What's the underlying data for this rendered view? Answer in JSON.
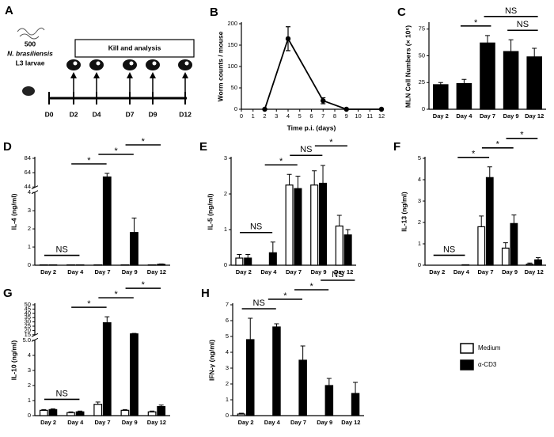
{
  "diagram": {
    "label": "A",
    "count": "500",
    "species": "N. brasiliensis",
    "stage": "L3 larvae",
    "box": "Kill and analysis",
    "days": [
      "D0",
      "D2",
      "D4",
      "D7",
      "D9",
      "D12"
    ]
  },
  "chart_data": [
    {
      "type": "line",
      "label": "B",
      "ylabel": "Worm counts / mouse",
      "xlabel": "Time p.i. (days)",
      "x": [
        2,
        4,
        7,
        9,
        12
      ],
      "series": [
        {
          "color": "#000000",
          "values": [
            0,
            165,
            20,
            0,
            0
          ],
          "errors": [
            0,
            28,
            7,
            0,
            0
          ]
        }
      ],
      "xlim": [
        0,
        12
      ],
      "ylim": [
        0,
        200
      ],
      "xticks": [
        0,
        1,
        2,
        3,
        4,
        5,
        6,
        7,
        8,
        9,
        10,
        11,
        12
      ],
      "yticks": [
        0,
        50,
        100,
        150,
        200
      ]
    },
    {
      "type": "bar",
      "label": "C",
      "ylabel": "MLN Cell Numbers (× 10⁶)",
      "categories": [
        "Day 2",
        "Day 4",
        "Day 7",
        "Day 9",
        "Day 12"
      ],
      "series": [
        {
          "color": "#000000",
          "values": [
            23,
            24,
            62,
            54,
            49
          ],
          "errors": [
            2,
            4,
            7,
            11,
            8
          ]
        }
      ],
      "ylim": [
        0,
        80
      ],
      "yticks": [
        0,
        25,
        50,
        75
      ],
      "annotations": [
        {
          "text": "*",
          "between": [
            "Day 4",
            "Day 7"
          ]
        },
        {
          "text": "NS",
          "between": [
            "Day 9",
            "Day 12"
          ]
        },
        {
          "text": "NS",
          "between": [
            "Day 7",
            "Day 12"
          ]
        }
      ]
    },
    {
      "type": "bar",
      "label": "D",
      "ylabel": "IL-4 (ng/ml)",
      "categories": [
        "Day 2",
        "Day 4",
        "Day 7",
        "Day 9",
        "Day 12"
      ],
      "series": [
        {
          "color": "#ffffff",
          "values": [
            0.02,
            0.02,
            0.02,
            0.02,
            0.02
          ],
          "errors": [
            0,
            0,
            0,
            0,
            0
          ]
        },
        {
          "color": "#000000",
          "values": [
            0.02,
            0.02,
            58,
            1.8,
            0.05
          ],
          "errors": [
            0,
            0,
            5,
            0.8,
            0.02
          ]
        }
      ],
      "ylim": [
        0,
        84
      ],
      "ybreak": [
        4,
        44
      ],
      "yticks": [
        0,
        1,
        2,
        3,
        4,
        44,
        64,
        84
      ],
      "annotations": [
        {
          "text": "NS",
          "between": [
            "Day 2",
            "Day 4"
          ]
        },
        {
          "text": "*",
          "between": [
            "Day 4",
            "Day 7"
          ]
        },
        {
          "text": "*",
          "between": [
            "Day 7",
            "Day 9"
          ]
        },
        {
          "text": "*",
          "between": [
            "Day 9",
            "Day 12"
          ]
        }
      ]
    },
    {
      "type": "bar",
      "label": "E",
      "ylabel": "IL-5 (ng/ml)",
      "categories": [
        "Day 2",
        "Day 4",
        "Day 7",
        "Day 9",
        "Day 12"
      ],
      "series": [
        {
          "color": "#ffffff",
          "values": [
            0.2,
            0,
            2.25,
            2.25,
            1.1
          ],
          "errors": [
            0.1,
            0,
            0.3,
            0.4,
            0.3
          ]
        },
        {
          "color": "#000000",
          "values": [
            0.2,
            0.35,
            2.15,
            2.3,
            0.85
          ],
          "errors": [
            0.1,
            0.3,
            0.35,
            0.5,
            0.15
          ]
        }
      ],
      "ylim": [
        0,
        3
      ],
      "yticks": [
        0,
        1,
        2,
        3
      ],
      "annotations": [
        {
          "text": "NS",
          "between": [
            "Day 2",
            "Day 4"
          ]
        },
        {
          "text": "*",
          "between": [
            "Day 4",
            "Day 7"
          ]
        },
        {
          "text": "NS",
          "between": [
            "Day 7",
            "Day 9"
          ]
        },
        {
          "text": "*",
          "between": [
            "Day 9",
            "Day 12"
          ]
        }
      ]
    },
    {
      "type": "bar",
      "label": "F",
      "ylabel": "IL-13 (ng/ml)",
      "categories": [
        "Day 2",
        "Day 4",
        "Day 7",
        "Day 9",
        "Day 12"
      ],
      "series": [
        {
          "color": "#ffffff",
          "values": [
            0,
            0,
            1.8,
            0.8,
            0.05
          ],
          "errors": [
            0,
            0,
            0.5,
            0.25,
            0.05
          ]
        },
        {
          "color": "#000000",
          "values": [
            0,
            0.02,
            4.1,
            1.95,
            0.25
          ],
          "errors": [
            0,
            0,
            0.5,
            0.4,
            0.1
          ]
        }
      ],
      "ylim": [
        0,
        5
      ],
      "yticks": [
        0,
        1,
        2,
        3,
        4,
        5
      ],
      "annotations": [
        {
          "text": "NS",
          "between": [
            "Day 2",
            "Day 4"
          ]
        },
        {
          "text": "*",
          "between": [
            "Day 4",
            "Day 7"
          ]
        },
        {
          "text": "*",
          "between": [
            "Day 7",
            "Day 9"
          ]
        },
        {
          "text": "*",
          "between": [
            "Day 9",
            "Day 12"
          ]
        }
      ]
    },
    {
      "type": "bar",
      "label": "G",
      "ylabel": "IL-10 (ng/ml)",
      "categories": [
        "Day 2",
        "Day 4",
        "Day 7",
        "Day 9",
        "Day 12"
      ],
      "series": [
        {
          "color": "#ffffff",
          "values": [
            0.35,
            0.2,
            0.75,
            0.35,
            0.25
          ],
          "errors": [
            0.05,
            0.05,
            0.15,
            0.05,
            0.05
          ]
        },
        {
          "color": "#000000",
          "values": [
            0.4,
            0.25,
            29,
            16,
            0.6
          ],
          "errors": [
            0.05,
            0.05,
            7,
            0.5,
            0.1
          ]
        }
      ],
      "ylim": [
        0,
        50
      ],
      "ybreak": [
        5,
        15
      ],
      "yticks": [
        0,
        1,
        2,
        3,
        4,
        {
          "value": 5,
          "label": "5.0"
        },
        15,
        20,
        25,
        30,
        35,
        40,
        45,
        50
      ],
      "annotations": [
        {
          "text": "NS",
          "between": [
            "Day 2",
            "Day 4"
          ]
        },
        {
          "text": "*",
          "between": [
            "Day 4",
            "Day 7"
          ]
        },
        {
          "text": "*",
          "between": [
            "Day 7",
            "Day 9"
          ]
        },
        {
          "text": "*",
          "between": [
            "Day 9",
            "Day 12"
          ]
        }
      ]
    },
    {
      "type": "bar",
      "label": "H",
      "ylabel": "IFN-γ (ng/ml)",
      "categories": [
        "Day 2",
        "Day 4",
        "Day 7",
        "Day 9",
        "Day 12"
      ],
      "series": [
        {
          "name": "Medium",
          "color": "#ffffff",
          "values": [
            0.1,
            0,
            0,
            0,
            0
          ],
          "errors": [
            0.05,
            0,
            0,
            0,
            0
          ]
        },
        {
          "name": "α-CD3",
          "color": "#000000",
          "values": [
            4.8,
            5.6,
            3.5,
            1.9,
            1.4
          ],
          "errors": [
            1.35,
            0.2,
            0.9,
            0.45,
            0.7
          ]
        }
      ],
      "ylim": [
        0,
        7
      ],
      "yticks": [
        0,
        1,
        2,
        3,
        4,
        5,
        6,
        7
      ],
      "legend": "right",
      "annotations": [
        {
          "text": "NS",
          "between": [
            "Day 2",
            "Day 4"
          ]
        },
        {
          "text": "*",
          "between": [
            "Day 4",
            "Day 7"
          ]
        },
        {
          "text": "*",
          "between": [
            "Day 7",
            "Day 9"
          ]
        },
        {
          "text": "NS",
          "between": [
            "Day 9",
            "Day 12"
          ]
        }
      ]
    }
  ]
}
